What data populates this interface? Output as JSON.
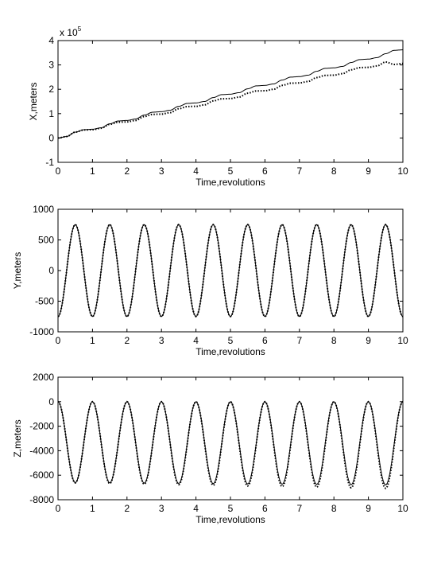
{
  "chart_data": [
    {
      "type": "line",
      "xlabel": "Time,revolutions",
      "ylabel": "X,meters",
      "exponent_label": "x 10",
      "exponent_power": "5",
      "xlim": [
        0,
        10
      ],
      "ylim": [
        -1,
        4
      ],
      "xticks": [
        "0",
        "1",
        "2",
        "3",
        "4",
        "5",
        "6",
        "7",
        "8",
        "9",
        "10"
      ],
      "yticks": [
        "-1",
        "0",
        "1",
        "2",
        "3",
        "4"
      ],
      "grid": false,
      "series": [
        {
          "style": "solid",
          "x": [
            0,
            0.25,
            0.5,
            0.75,
            1,
            1.25,
            1.5,
            1.75,
            2,
            2.25,
            2.5,
            2.75,
            3,
            3.25,
            3.5,
            3.75,
            4,
            4.25,
            4.5,
            4.75,
            5,
            5.25,
            5.5,
            5.75,
            6,
            6.25,
            6.5,
            6.75,
            7,
            7.25,
            7.5,
            7.75,
            8,
            8.25,
            8.5,
            8.75,
            9,
            9.25,
            9.5,
            9.75,
            10
          ],
          "values": [
            0,
            0.06,
            0.24,
            0.34,
            0.36,
            0.42,
            0.58,
            0.7,
            0.72,
            0.78,
            0.94,
            1.06,
            1.08,
            1.14,
            1.3,
            1.42,
            1.44,
            1.5,
            1.66,
            1.78,
            1.8,
            1.86,
            2.02,
            2.14,
            2.16,
            2.22,
            2.38,
            2.5,
            2.52,
            2.58,
            2.74,
            2.86,
            2.88,
            2.94,
            3.1,
            3.22,
            3.24,
            3.3,
            3.46,
            3.6,
            3.62
          ]
        },
        {
          "style": "dotted",
          "x": [
            0,
            0.25,
            0.5,
            0.75,
            1,
            1.25,
            1.5,
            1.75,
            2,
            2.25,
            2.5,
            2.75,
            3,
            3.25,
            3.5,
            3.75,
            4,
            4.25,
            4.5,
            4.75,
            5,
            5.25,
            5.5,
            5.75,
            6,
            6.25,
            6.5,
            6.75,
            7,
            7.25,
            7.5,
            7.75,
            8,
            8.25,
            8.5,
            8.75,
            9,
            9.25,
            9.5,
            9.75,
            10
          ],
          "values": [
            0,
            0.06,
            0.24,
            0.33,
            0.34,
            0.4,
            0.56,
            0.65,
            0.66,
            0.72,
            0.88,
            0.97,
            0.98,
            1.04,
            1.2,
            1.29,
            1.3,
            1.36,
            1.52,
            1.61,
            1.62,
            1.68,
            1.84,
            1.93,
            1.94,
            2.0,
            2.16,
            2.25,
            2.26,
            2.32,
            2.48,
            2.57,
            2.58,
            2.64,
            2.8,
            2.89,
            2.9,
            2.96,
            3.12,
            3.02,
            3.06
          ]
        }
      ]
    },
    {
      "type": "line",
      "xlabel": "Time,revolutions",
      "ylabel": "Y,meters",
      "xlim": [
        0,
        10
      ],
      "ylim": [
        -1000,
        1000
      ],
      "xticks": [
        "0",
        "1",
        "2",
        "3",
        "4",
        "5",
        "6",
        "7",
        "8",
        "9",
        "10"
      ],
      "yticks": [
        "-1000",
        "-500",
        "0",
        "500",
        "1000"
      ],
      "grid": false,
      "amplitude": 750,
      "period": 1.0,
      "series": [
        {
          "style": "solid",
          "start": -750,
          "end": -620
        },
        {
          "style": "dotted",
          "start": -750,
          "end": -620
        }
      ]
    },
    {
      "type": "line",
      "xlabel": "Time,revolutions",
      "ylabel": "Z,meters",
      "xlim": [
        0,
        10
      ],
      "ylim": [
        -8000,
        2000
      ],
      "xticks": [
        "0",
        "1",
        "2",
        "3",
        "4",
        "5",
        "6",
        "7",
        "8",
        "9",
        "10"
      ],
      "yticks": [
        "-8000",
        "-6000",
        "-4000",
        "-2000",
        "0",
        "2000"
      ],
      "grid": false,
      "series": [
        {
          "style": "solid",
          "peak": 0,
          "trough_start": -6600,
          "trough_end": -6800,
          "period": 1.0
        },
        {
          "style": "dotted",
          "peak": 0,
          "trough_start": -6600,
          "trough_end": -7100,
          "period": 1.0
        }
      ]
    }
  ]
}
